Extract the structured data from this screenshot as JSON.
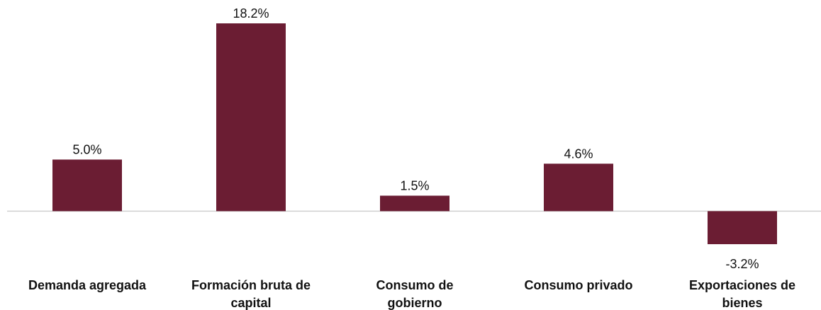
{
  "chart_data": {
    "type": "bar",
    "categories": [
      "Demanda agregada",
      "Formación bruta de capital",
      "Consumo de gobierno",
      "Consumo privado",
      "Exportaciones de bienes"
    ],
    "values": [
      5.0,
      18.2,
      1.5,
      4.6,
      -3.2
    ],
    "value_labels": [
      "5.0%",
      "18.2%",
      "1.5%",
      "4.6%",
      "-3.2%"
    ],
    "color": "#6b1d33"
  }
}
